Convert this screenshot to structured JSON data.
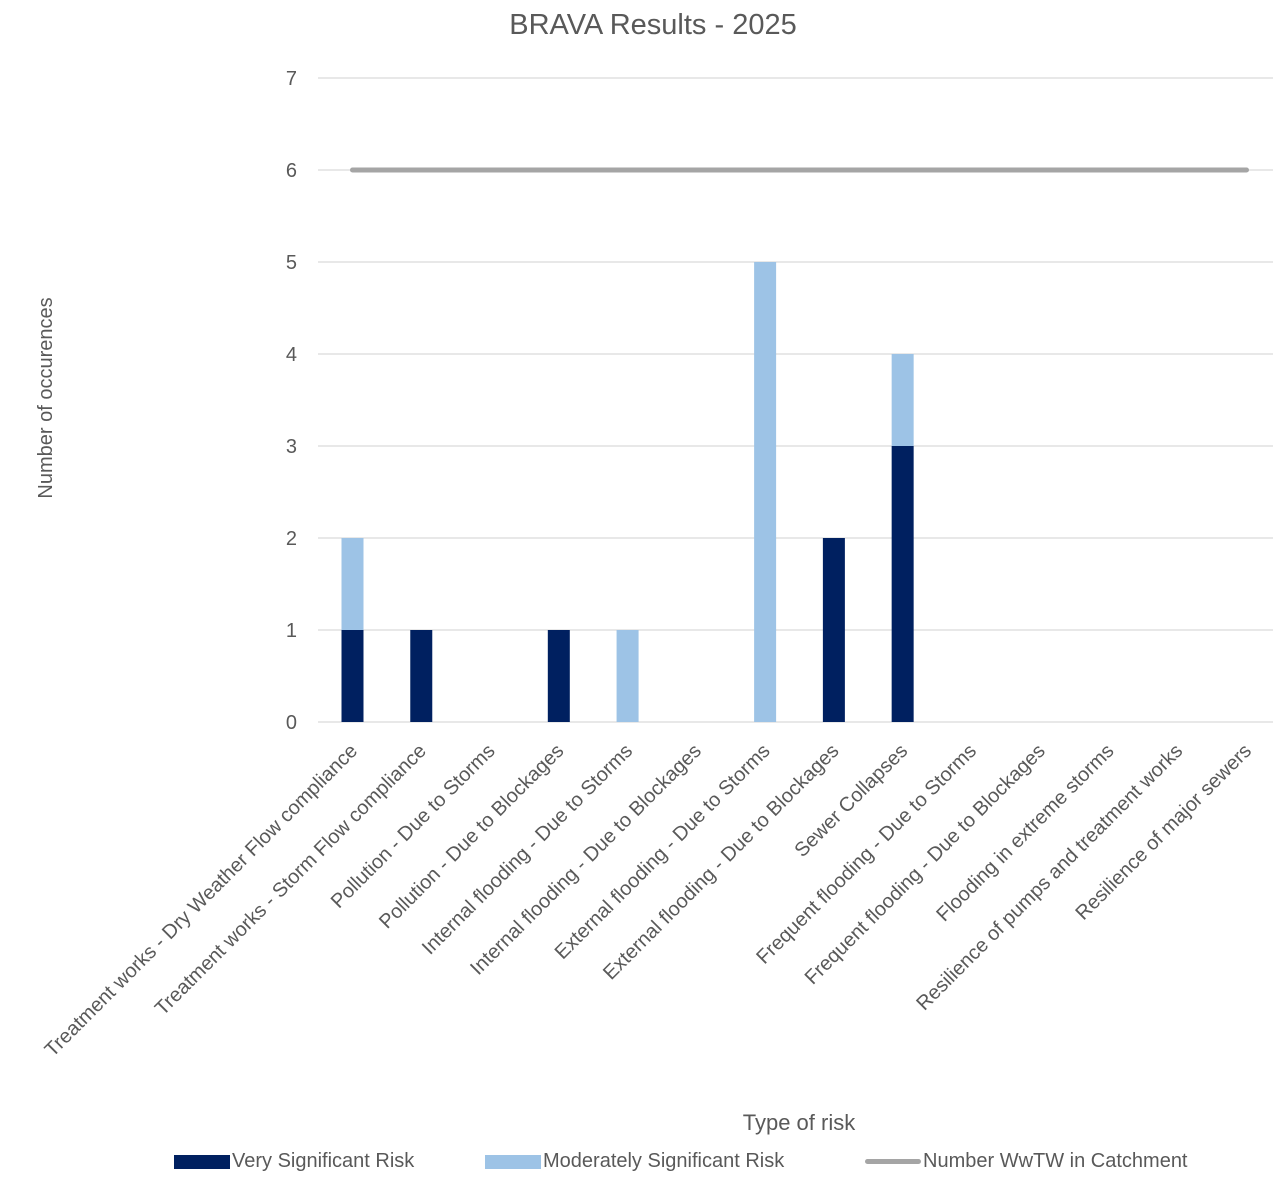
{
  "chart_data": {
    "type": "bar",
    "stacked": true,
    "title": "BRAVA Results - 2025",
    "xlabel": "Type of risk",
    "ylabel": "Number of occurences",
    "ylim": [
      0,
      7
    ],
    "yticks": [
      "0",
      "1",
      "2",
      "3",
      "4",
      "5",
      "6",
      "7"
    ],
    "grid": true,
    "legend_position": "bottom",
    "categories": [
      "Treatment works - Dry Weather Flow compliance",
      "Treatment works - Storm Flow compliance",
      "Pollution - Due to Storms",
      "Pollution - Due to Blockages",
      "Internal flooding - Due to Storms",
      "Internal flooding - Due to Blockages",
      "External flooding - Due to Storms",
      "External flooding - Due to Blockages",
      "Sewer Collapses",
      "Frequent flooding - Due to Storms",
      "Frequent flooding - Due to Blockages",
      "Flooding in extreme storms",
      "Resilience of pumps and treatment works",
      "Resilience of major sewers"
    ],
    "series": [
      {
        "name": "Very Significant Risk",
        "kind": "bar",
        "color": "#002060",
        "values": [
          1,
          1,
          0,
          1,
          0,
          0,
          0,
          2,
          3,
          0,
          0,
          0,
          0,
          0
        ]
      },
      {
        "name": "Moderately Significant Risk",
        "kind": "bar",
        "color": "#9DC3E6",
        "values": [
          1,
          0,
          0,
          0,
          1,
          0,
          5,
          0,
          1,
          0,
          0,
          0,
          0,
          0
        ]
      },
      {
        "name": "Number WwTW in Catchment",
        "kind": "line",
        "color": "#A5A5A5",
        "values": [
          6,
          6,
          6,
          6,
          6,
          6,
          6,
          6,
          6,
          6,
          6,
          6,
          6,
          6
        ]
      }
    ]
  }
}
